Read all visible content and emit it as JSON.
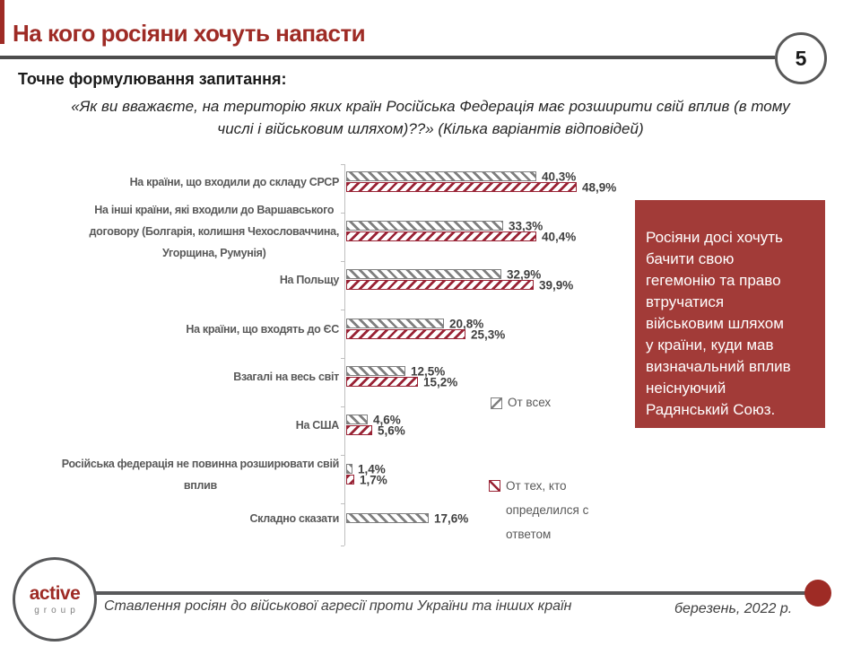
{
  "header": {
    "title": "На кого росіяни хочуть напасти",
    "page_number": "5"
  },
  "question": {
    "label": "Точне формулювання запитання:",
    "text": "«Як ви вважаєте, на територію яких країн Російська Федерація має розширити свій вплив (в тому\nчислі і військовим шляхом)??» (Кілька варіантів відповідей)"
  },
  "chart_data": {
    "type": "bar",
    "orientation": "horizontal",
    "title": "",
    "xlabel": "",
    "ylabel": "",
    "xlim": [
      0,
      50
    ],
    "grid": false,
    "legend_position": "inside-right",
    "value_label_format": "comma-decimal-percent",
    "categories": [
      "На країни, що входили до складу СРСР",
      "На інші країни, які входили до Варшавського\nдоговору (Болгарія, колишня Чехословаччина,\nУгорщина, Румунія)",
      "На Польщу",
      "На країни, що входять до ЄС",
      "Взагалі на весь світ",
      "На США",
      "Російська федерація не повинна розширювати свій\nвплив",
      "Складно сказати"
    ],
    "series": [
      {
        "name": "От всех",
        "color": "#7F7F7F",
        "hatch": "\\\\",
        "values": [
          40.3,
          33.3,
          32.9,
          20.8,
          12.5,
          4.6,
          1.4,
          17.6
        ]
      },
      {
        "name": "От тех, кто определился с ответом",
        "color": "#992335",
        "hatch": "//",
        "values": [
          48.9,
          40.4,
          39.9,
          25.3,
          15.2,
          5.6,
          1.7,
          null
        ]
      }
    ]
  },
  "insight_box": {
    "text": "Росіяни досі хочуть\nбачити свою\nгегемонію та право\nвтручатися\nвійськовим шляхом\nу країни, куди мав\nвизначальний вплив\nнеіснуючий\nРадянський Союз.",
    "bg_color": "#A23B38"
  },
  "footer": {
    "logo_primary": "active",
    "logo_secondary": "group",
    "title": "Ставлення росіян до військової агресії проти України та інших країн",
    "date": "березень, 2022 р."
  },
  "colors": {
    "title_red": "#9E2B25",
    "bar_red": "#992335",
    "bar_gray": "#7F7F7F",
    "box_red": "#A23B38",
    "divider_gray": "#4D4D4D",
    "label_gray": "#595959",
    "value_gray": "#404040"
  }
}
